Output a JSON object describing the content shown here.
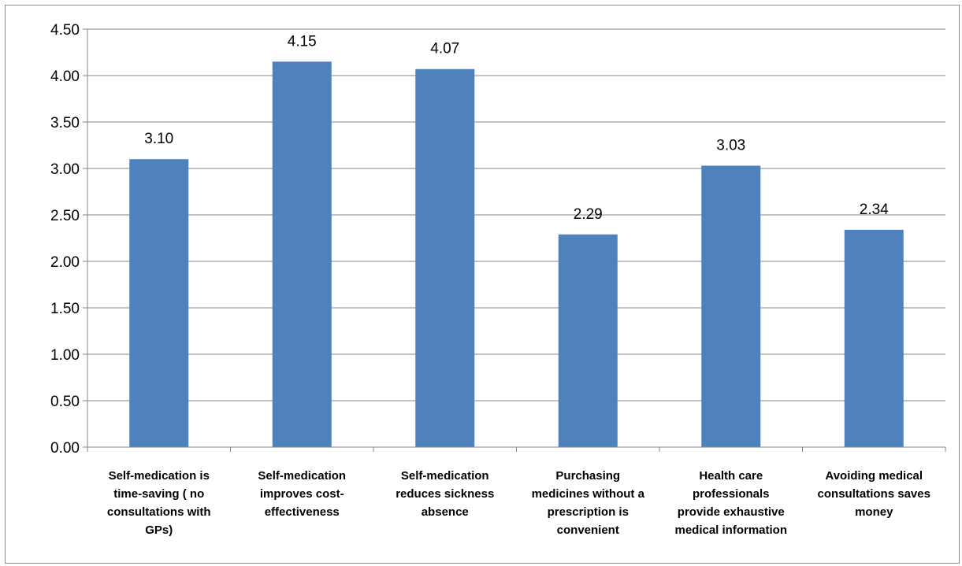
{
  "chart_data": {
    "type": "bar",
    "categories": [
      [
        "Self-medication",
        "is",
        "time-saving ( no",
        "consultations with",
        "GPs)"
      ],
      [
        "Self-medication",
        "improves cost-",
        "effectiveness"
      ],
      [
        "Self-medication",
        "reduces sickness",
        "absence"
      ],
      [
        "Purchasing",
        "medicines without a",
        "prescription is",
        "convenient"
      ],
      [
        "Health care",
        "professionals",
        "provide exhaustive",
        "medical information"
      ],
      [
        "Avoiding medical",
        "consultations saves",
        "money"
      ]
    ],
    "category_lines": [
      [
        "Self-medication is",
        "time-saving ( no",
        "consultations with",
        "GPs)"
      ],
      [
        "Self-medication",
        "improves cost-",
        "effectiveness"
      ],
      [
        "Self-medication",
        "reduces sickness",
        "absence"
      ],
      [
        "Purchasing",
        "medicines without a",
        "prescription is",
        "convenient"
      ],
      [
        "Health care",
        "professionals",
        "provide exhaustive",
        "medical information"
      ],
      [
        "Avoiding medical",
        "consultations saves",
        "money"
      ]
    ],
    "values": [
      3.1,
      4.15,
      4.07,
      2.29,
      3.03,
      2.34
    ],
    "data_labels": [
      "3.10",
      "4.15",
      "4.07",
      "2.29",
      "3.03",
      "2.34"
    ],
    "yticks": [
      "0.00",
      "0.50",
      "1.00",
      "1.50",
      "2.00",
      "2.50",
      "3.00",
      "3.50",
      "4.00",
      "4.50"
    ],
    "ylim": [
      0,
      4.5
    ],
    "grid": true,
    "bar_color": "#4f81bd",
    "title": "",
    "xlabel": "",
    "ylabel": ""
  }
}
